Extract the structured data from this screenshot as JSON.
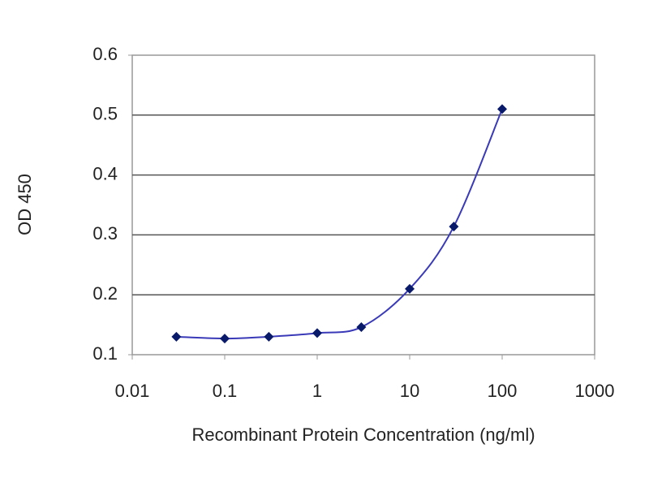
{
  "chart_data": {
    "type": "line",
    "x_label": "Recombinant Protein Concentration (ng/ml)",
    "y_label": "OD 450",
    "x": [
      0.03,
      0.1,
      0.3,
      1,
      3,
      10,
      30,
      100
    ],
    "series": [
      {
        "color": "#3a3ab8",
        "marker_color": "#0a1a6a",
        "values": [
          0.13,
          0.127,
          0.13,
          0.136,
          0.146,
          0.21,
          0.314,
          0.51
        ]
      }
    ],
    "xscale": "log",
    "xlim": [
      0.01,
      1000
    ],
    "xticks": [
      0.01,
      0.1,
      1,
      10,
      100,
      1000
    ],
    "ylim": [
      0.1,
      0.6
    ],
    "yticks": [
      0.1,
      0.2,
      0.3,
      0.4,
      0.5,
      0.6
    ],
    "grid": true
  }
}
